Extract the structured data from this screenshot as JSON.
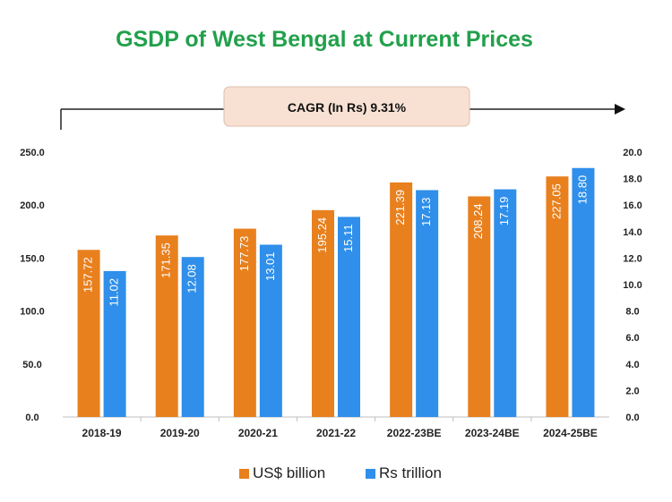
{
  "chart_data": {
    "type": "bar",
    "title": "GSDP of West Bengal at Current Prices",
    "annotation": "CAGR (In Rs) 9.31%",
    "categories": [
      "2018-19",
      "2019-20",
      "2020-21",
      "2021-22",
      "2022-23BE",
      "2023-24BE",
      "2024-25BE"
    ],
    "series": [
      {
        "name": "US$ billion",
        "axis": "left",
        "color": "#E8801E",
        "values": [
          157.72,
          171.35,
          177.73,
          195.24,
          221.39,
          208.24,
          227.05
        ],
        "labels": [
          "157.72",
          "171.35",
          "177.73",
          "195.24",
          "221.39",
          "208.24",
          "227.05"
        ]
      },
      {
        "name": "Rs trillion",
        "axis": "right",
        "color": "#2F8FEA",
        "values": [
          11.02,
          12.08,
          13.01,
          15.11,
          17.13,
          17.19,
          18.8
        ],
        "labels": [
          "11.02",
          "12.08",
          "13.01",
          "15.11",
          "17.13",
          "17.19",
          "18.80"
        ]
      }
    ],
    "y_left": {
      "min": 0,
      "max": 250,
      "ticks": [
        "0.0",
        "50.0",
        "100.0",
        "150.0",
        "200.0",
        "250.0"
      ]
    },
    "y_right": {
      "min": 0,
      "max": 20,
      "ticks": [
        "0.0",
        "2.0",
        "4.0",
        "6.0",
        "8.0",
        "10.0",
        "12.0",
        "14.0",
        "16.0",
        "18.0",
        "20.0"
      ]
    },
    "legend_position": "bottom",
    "title_color": "#22A04B",
    "annotation_box_color": "#F8E1D3"
  }
}
